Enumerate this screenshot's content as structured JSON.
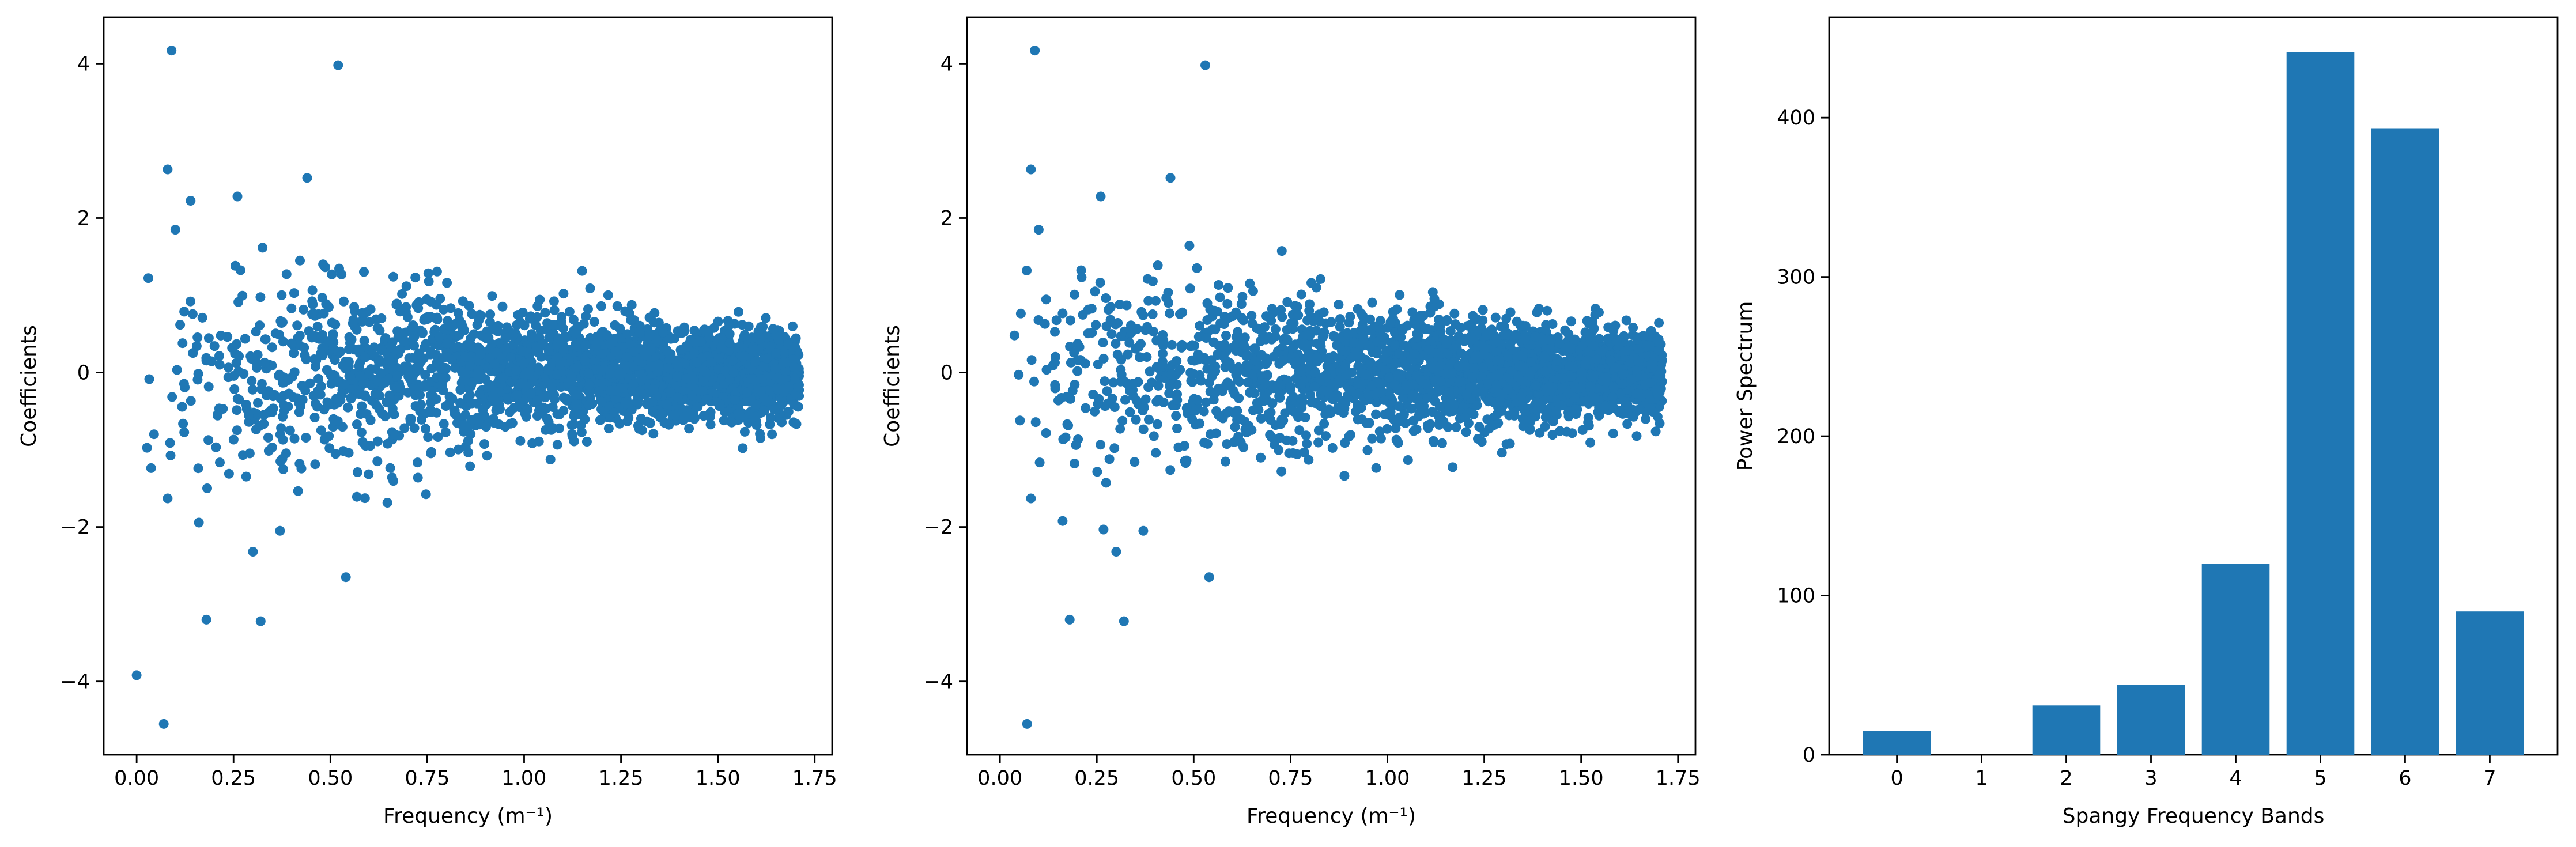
{
  "chart_data": [
    {
      "type": "scatter",
      "xlabel": "Frequency (m⁻¹)",
      "ylabel": "Coefficients",
      "xlim": [
        -0.085,
        1.795
      ],
      "ylim": [
        -4.95,
        4.6
      ],
      "xticks": [
        {
          "value": 0.0,
          "label": "0.00"
        },
        {
          "value": 0.25,
          "label": "0.25"
        },
        {
          "value": 0.5,
          "label": "0.50"
        },
        {
          "value": 0.75,
          "label": "0.75"
        },
        {
          "value": 1.0,
          "label": "1.00"
        },
        {
          "value": 1.25,
          "label": "1.25"
        },
        {
          "value": 1.5,
          "label": "1.50"
        },
        {
          "value": 1.75,
          "label": "1.75"
        }
      ],
      "yticks": [
        {
          "value": -4,
          "label": "−4"
        },
        {
          "value": -2,
          "label": "−2"
        },
        {
          "value": 0,
          "label": "0"
        },
        {
          "value": 2,
          "label": "2"
        },
        {
          "value": 4,
          "label": "4"
        }
      ],
      "grid": false,
      "color": "#1f77b4",
      "x_range": [
        0.0,
        1.71
      ],
      "point_count": 2600,
      "outliers": [
        {
          "x": 0.09,
          "y": 4.17
        },
        {
          "x": 0.52,
          "y": 3.98
        },
        {
          "x": 0.08,
          "y": 2.63
        },
        {
          "x": 0.0,
          "y": -3.92
        },
        {
          "x": 0.07,
          "y": -4.55
        },
        {
          "x": 0.18,
          "y": -3.2
        },
        {
          "x": 0.32,
          "y": -3.22
        },
        {
          "x": 0.54,
          "y": -2.65
        },
        {
          "x": 0.3,
          "y": -2.32
        },
        {
          "x": 0.26,
          "y": 2.28
        },
        {
          "x": 0.44,
          "y": 2.52
        },
        {
          "x": 0.1,
          "y": 1.85
        },
        {
          "x": 0.08,
          "y": -1.63
        },
        {
          "x": 0.37,
          "y": -2.05
        }
      ]
    },
    {
      "type": "scatter",
      "xlabel": "Frequency (m⁻¹)",
      "ylabel": "Coefficients",
      "xlim": [
        -0.085,
        1.795
      ],
      "ylim": [
        -4.95,
        4.6
      ],
      "xticks": [
        {
          "value": 0.0,
          "label": "0.00"
        },
        {
          "value": 0.25,
          "label": "0.25"
        },
        {
          "value": 0.5,
          "label": "0.50"
        },
        {
          "value": 0.75,
          "label": "0.75"
        },
        {
          "value": 1.0,
          "label": "1.00"
        },
        {
          "value": 1.25,
          "label": "1.25"
        },
        {
          "value": 1.5,
          "label": "1.50"
        },
        {
          "value": 1.75,
          "label": "1.75"
        }
      ],
      "yticks": [
        {
          "value": -4,
          "label": "−4"
        },
        {
          "value": -2,
          "label": "−2"
        },
        {
          "value": 0,
          "label": "0"
        },
        {
          "value": 2,
          "label": "2"
        },
        {
          "value": 4,
          "label": "4"
        }
      ],
      "grid": false,
      "color": "#1f77b4",
      "x_range": [
        0.0,
        1.71
      ],
      "point_count": 2600,
      "outliers": [
        {
          "x": 0.09,
          "y": 4.17
        },
        {
          "x": 0.53,
          "y": 3.98
        },
        {
          "x": 0.08,
          "y": 2.63
        },
        {
          "x": 0.07,
          "y": -4.55
        },
        {
          "x": 0.18,
          "y": -3.2
        },
        {
          "x": 0.32,
          "y": -3.22
        },
        {
          "x": 0.54,
          "y": -2.65
        },
        {
          "x": 0.3,
          "y": -2.32
        },
        {
          "x": 0.26,
          "y": 2.28
        },
        {
          "x": 0.44,
          "y": 2.52
        },
        {
          "x": 0.1,
          "y": 1.85
        },
        {
          "x": 0.08,
          "y": -1.63
        },
        {
          "x": 0.37,
          "y": -2.05
        }
      ]
    },
    {
      "type": "bar",
      "xlabel": "Spangy Frequency Bands",
      "ylabel": "Power Spectrum",
      "categories": [
        "0",
        "1",
        "2",
        "3",
        "4",
        "5",
        "6",
        "7"
      ],
      "values": [
        15,
        0,
        31,
        44,
        120,
        441,
        393,
        90
      ],
      "xlim": [
        -0.8,
        7.8
      ],
      "ylim": [
        0,
        463
      ],
      "yticks": [
        {
          "value": 0,
          "label": "0"
        },
        {
          "value": 100,
          "label": "100"
        },
        {
          "value": 200,
          "label": "200"
        },
        {
          "value": 300,
          "label": "300"
        },
        {
          "value": 400,
          "label": "400"
        }
      ],
      "grid": false,
      "color": "#1f77b4"
    }
  ]
}
